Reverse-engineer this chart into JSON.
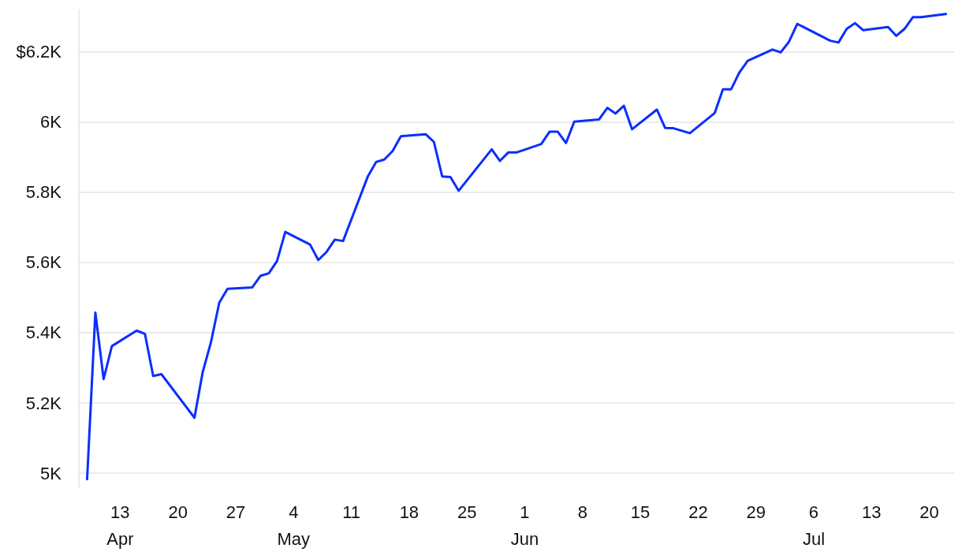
{
  "chart_data": {
    "type": "line",
    "x": [
      "--04-09",
      "--04-10",
      "--04-11",
      "--04-12",
      "--04-15",
      "--04-16",
      "--04-17",
      "--04-18",
      "--04-22",
      "--04-23",
      "--04-24",
      "--04-25",
      "--04-26",
      "--04-29",
      "--04-30",
      "--05-01",
      "--05-02",
      "--05-03",
      "--05-06",
      "--05-07",
      "--05-08",
      "--05-09",
      "--05-10",
      "--05-13",
      "--05-14",
      "--05-15",
      "--05-16",
      "--05-17",
      "--05-20",
      "--05-21",
      "--05-22",
      "--05-23",
      "--05-24",
      "--05-28",
      "--05-29",
      "--05-30",
      "--05-31",
      "--06-03",
      "--06-04",
      "--06-05",
      "--06-06",
      "--06-07",
      "--06-10",
      "--06-11",
      "--06-12",
      "--06-13",
      "--06-14",
      "--06-17",
      "--06-18",
      "--06-19",
      "--06-21",
      "--06-24",
      "--06-25",
      "--06-26",
      "--06-27",
      "--06-28",
      "--07-01",
      "--07-02",
      "--07-03",
      "--07-04",
      "--07-08",
      "--07-09",
      "--07-10",
      "--07-11",
      "--07-12",
      "--07-15",
      "--07-16",
      "--07-17",
      "--07-18",
      "--07-19",
      "--07-22"
    ],
    "series": [
      {
        "color": "#0a2eff",
        "values": [
          4983,
          5457,
          5268,
          5362,
          5406,
          5397,
          5277,
          5282,
          5158,
          5288,
          5373,
          5485,
          5525,
          5529,
          5562,
          5569,
          5604,
          5687,
          5651,
          5607,
          5630,
          5665,
          5661,
          5845,
          5886,
          5893,
          5917,
          5959,
          5965,
          5943,
          5845,
          5843,
          5804,
          5922,
          5889,
          5913,
          5913,
          5937,
          5972,
          5972,
          5940,
          6001,
          6007,
          6040,
          6024,
          6046,
          5979,
          6035,
          5983,
          5982,
          5968,
          6025,
          6093,
          6093,
          6141,
          6174,
          6206,
          6198,
          6228,
          6279,
          6231,
          6226,
          6265,
          6281,
          6261,
          6270,
          6245,
          6265,
          6298,
          6298,
          6307
        ]
      }
    ],
    "xlim": [
      "--04-08",
      "--07-23"
    ],
    "xticks": [
      {
        "value": "--04-13",
        "label": "13\nApr"
      },
      {
        "value": "--04-20",
        "label": "20"
      },
      {
        "value": "--04-27",
        "label": "27"
      },
      {
        "value": "--05-04",
        "label": "4\nMay"
      },
      {
        "value": "--05-11",
        "label": "11"
      },
      {
        "value": "--05-18",
        "label": "18"
      },
      {
        "value": "--05-25",
        "label": "25"
      },
      {
        "value": "--06-01",
        "label": "1\nJun"
      },
      {
        "value": "--06-08",
        "label": "8"
      },
      {
        "value": "--06-15",
        "label": "15"
      },
      {
        "value": "--06-22",
        "label": "22"
      },
      {
        "value": "--06-29",
        "label": "29"
      },
      {
        "value": "--07-06",
        "label": "6\nJul"
      },
      {
        "value": "--07-13",
        "label": "13"
      },
      {
        "value": "--07-20",
        "label": "20"
      }
    ],
    "ylim": [
      4960,
      6320
    ],
    "yticks": [
      {
        "value": 5000,
        "label": "5K"
      },
      {
        "value": 5200,
        "label": "5.2K"
      },
      {
        "value": 5400,
        "label": "5.4K"
      },
      {
        "value": 5600,
        "label": "5.6K"
      },
      {
        "value": 5800,
        "label": "5.8K"
      },
      {
        "value": 6000,
        "label": "6K"
      },
      {
        "value": 6200,
        "label": "$6.2K"
      }
    ],
    "grid": "y",
    "marker": "none",
    "line_style": "solid"
  }
}
